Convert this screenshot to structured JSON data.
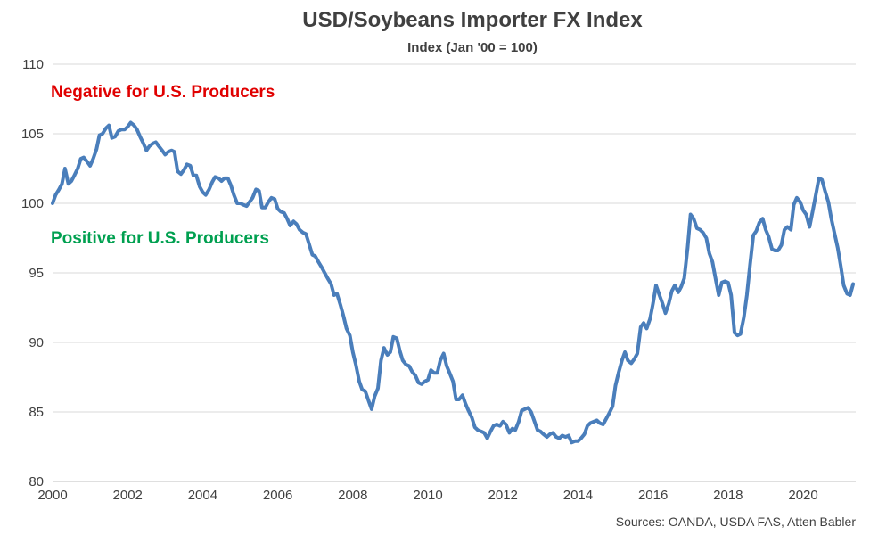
{
  "chart_data": {
    "type": "line",
    "title": "USD/Soybeans Importer FX Index",
    "subtitle": "Index (Jan '00 = 100)",
    "xlabel": "",
    "ylabel": "",
    "xlim": [
      2000,
      2021.4
    ],
    "ylim": [
      80,
      110
    ],
    "x_ticks": [
      2000,
      2002,
      2004,
      2006,
      2008,
      2010,
      2012,
      2014,
      2016,
      2018,
      2020
    ],
    "x_tick_labels": [
      "2000",
      "2002",
      "2004",
      "2006",
      "2008",
      "2010",
      "2012",
      "2014",
      "2016",
      "2018",
      "2020"
    ],
    "y_ticks": [
      80,
      85,
      90,
      95,
      100,
      105,
      110
    ],
    "y_tick_labels": [
      "80",
      "85",
      "90",
      "95",
      "100",
      "105",
      "110"
    ],
    "grid": "horizontal",
    "legend": "none",
    "annotations": [
      {
        "text": "Negative for U.S. Producers",
        "color": "#e00000"
      },
      {
        "text": "Positive for U.S. Producers",
        "color": "#00a050"
      }
    ],
    "source": "Sources: OANDA, USDA FAS, Atten Babler",
    "series": [
      {
        "color": "#4a7ebb",
        "x": [
          2000.0,
          2000.08,
          2000.17,
          2000.25,
          2000.33,
          2000.42,
          2000.5,
          2000.58,
          2000.67,
          2000.75,
          2000.83,
          2000.92,
          2001.0,
          2001.08,
          2001.17,
          2001.25,
          2001.33,
          2001.42,
          2001.5,
          2001.58,
          2001.67,
          2001.75,
          2001.83,
          2001.92,
          2002.0,
          2002.08,
          2002.17,
          2002.25,
          2002.33,
          2002.42,
          2002.5,
          2002.58,
          2002.67,
          2002.75,
          2002.83,
          2002.92,
          2003.0,
          2003.08,
          2003.17,
          2003.25,
          2003.33,
          2003.42,
          2003.5,
          2003.58,
          2003.67,
          2003.75,
          2003.83,
          2003.92,
          2004.0,
          2004.08,
          2004.17,
          2004.25,
          2004.33,
          2004.42,
          2004.5,
          2004.58,
          2004.67,
          2004.75,
          2004.83,
          2004.92,
          2005.0,
          2005.08,
          2005.17,
          2005.25,
          2005.33,
          2005.42,
          2005.5,
          2005.58,
          2005.67,
          2005.75,
          2005.83,
          2005.92,
          2006.0,
          2006.08,
          2006.17,
          2006.25,
          2006.33,
          2006.42,
          2006.5,
          2006.58,
          2006.67,
          2006.75,
          2006.83,
          2006.92,
          2007.0,
          2007.08,
          2007.17,
          2007.25,
          2007.33,
          2007.42,
          2007.5,
          2007.58,
          2007.67,
          2007.75,
          2007.83,
          2007.92,
          2008.0,
          2008.08,
          2008.17,
          2008.25,
          2008.33,
          2008.42,
          2008.5,
          2008.58,
          2008.67,
          2008.75,
          2008.83,
          2008.92,
          2009.0,
          2009.08,
          2009.17,
          2009.25,
          2009.33,
          2009.42,
          2009.5,
          2009.58,
          2009.67,
          2009.75,
          2009.83,
          2009.92,
          2010.0,
          2010.08,
          2010.17,
          2010.25,
          2010.33,
          2010.42,
          2010.5,
          2010.58,
          2010.67,
          2010.75,
          2010.83,
          2010.92,
          2011.0,
          2011.08,
          2011.17,
          2011.25,
          2011.33,
          2011.42,
          2011.5,
          2011.58,
          2011.67,
          2011.75,
          2011.83,
          2011.92,
          2012.0,
          2012.08,
          2012.17,
          2012.25,
          2012.33,
          2012.42,
          2012.5,
          2012.58,
          2012.67,
          2012.75,
          2012.83,
          2012.92,
          2013.0,
          2013.08,
          2013.17,
          2013.25,
          2013.33,
          2013.42,
          2013.5,
          2013.58,
          2013.67,
          2013.75,
          2013.83,
          2013.92,
          2014.0,
          2014.08,
          2014.17,
          2014.25,
          2014.33,
          2014.42,
          2014.5,
          2014.58,
          2014.67,
          2014.75,
          2014.83,
          2014.92,
          2015.0,
          2015.08,
          2015.17,
          2015.25,
          2015.33,
          2015.42,
          2015.5,
          2015.58,
          2015.67,
          2015.75,
          2015.83,
          2015.92,
          2016.0,
          2016.08,
          2016.17,
          2016.25,
          2016.33,
          2016.42,
          2016.5,
          2016.58,
          2016.67,
          2016.75,
          2016.83,
          2016.92,
          2017.0,
          2017.08,
          2017.17,
          2017.25,
          2017.33,
          2017.42,
          2017.5,
          2017.58,
          2017.67,
          2017.75,
          2017.83,
          2017.92,
          2018.0,
          2018.08,
          2018.17,
          2018.25,
          2018.33,
          2018.42,
          2018.5,
          2018.58,
          2018.67,
          2018.75,
          2018.83,
          2018.92,
          2019.0,
          2019.08,
          2019.17,
          2019.25,
          2019.33,
          2019.42,
          2019.5,
          2019.58,
          2019.67,
          2019.75,
          2019.83,
          2019.92,
          2020.0,
          2020.08,
          2020.17,
          2020.25,
          2020.33,
          2020.42,
          2020.5,
          2020.58,
          2020.67,
          2020.75,
          2020.83,
          2020.92,
          2021.0,
          2021.08,
          2021.17,
          2021.25,
          2021.33
        ],
        "values": [
          100.0,
          100.6,
          101.0,
          101.4,
          102.5,
          101.4,
          101.6,
          102.0,
          102.5,
          103.2,
          103.3,
          103.0,
          102.7,
          103.2,
          103.9,
          104.9,
          105.0,
          105.4,
          105.6,
          104.7,
          104.8,
          105.2,
          105.3,
          105.3,
          105.5,
          105.8,
          105.6,
          105.3,
          104.8,
          104.3,
          103.8,
          104.1,
          104.3,
          104.4,
          104.1,
          103.8,
          103.5,
          103.7,
          103.8,
          103.7,
          102.3,
          102.1,
          102.4,
          102.8,
          102.7,
          102.0,
          102.0,
          101.2,
          100.8,
          100.6,
          101.0,
          101.5,
          101.9,
          101.8,
          101.6,
          101.8,
          101.8,
          101.3,
          100.6,
          100.0,
          100.0,
          99.9,
          99.8,
          100.1,
          100.4,
          101.0,
          100.9,
          99.7,
          99.7,
          100.1,
          100.4,
          100.3,
          99.6,
          99.4,
          99.3,
          98.9,
          98.4,
          98.7,
          98.5,
          98.1,
          97.9,
          97.8,
          97.1,
          96.3,
          96.2,
          95.8,
          95.4,
          95.0,
          94.6,
          94.2,
          93.4,
          93.5,
          92.7,
          91.9,
          91.0,
          90.5,
          89.3,
          88.4,
          87.2,
          86.6,
          86.5,
          85.8,
          85.2,
          86.1,
          86.7,
          88.7,
          89.6,
          89.1,
          89.3,
          90.4,
          90.3,
          89.4,
          88.7,
          88.4,
          88.3,
          87.9,
          87.6,
          87.1,
          87.0,
          87.2,
          87.3,
          88.0,
          87.8,
          87.8,
          88.7,
          89.2,
          88.3,
          87.8,
          87.2,
          85.9,
          85.9,
          86.2,
          85.6,
          85.1,
          84.6,
          83.9,
          83.7,
          83.6,
          83.5,
          83.1,
          83.6,
          84.0,
          84.1,
          84.0,
          84.3,
          84.1,
          83.5,
          83.8,
          83.7,
          84.3,
          85.1,
          85.2,
          85.3,
          85.0,
          84.4,
          83.7,
          83.6,
          83.4,
          83.2,
          83.4,
          83.5,
          83.2,
          83.1,
          83.3,
          83.2,
          83.3,
          82.8,
          82.9,
          82.9,
          83.1,
          83.4,
          84.0,
          84.2,
          84.3,
          84.4,
          84.2,
          84.1,
          84.5,
          84.9,
          85.4,
          86.9,
          87.8,
          88.7,
          89.3,
          88.7,
          88.5,
          88.8,
          89.2,
          91.1,
          91.4,
          91.0,
          91.7,
          92.8,
          94.1,
          93.4,
          92.8,
          92.1,
          92.8,
          93.7,
          94.1,
          93.6,
          94.0,
          94.6,
          96.8,
          99.2,
          98.9,
          98.2,
          98.1,
          97.9,
          97.5,
          96.4,
          95.8,
          94.5,
          93.4,
          94.3,
          94.4,
          94.3,
          93.4,
          90.7,
          90.5,
          90.6,
          91.8,
          93.4,
          95.5,
          97.7,
          98.0,
          98.6,
          98.9,
          98.1,
          97.6,
          96.7,
          96.6,
          96.6,
          97.0,
          98.1,
          98.3,
          98.1,
          99.9,
          100.4,
          100.1,
          99.5,
          99.2,
          98.3,
          99.4,
          100.5,
          101.8,
          101.7,
          100.9,
          100.1,
          98.9,
          97.9,
          96.8,
          95.5,
          94.1,
          93.5,
          93.4,
          94.2
        ]
      }
    ]
  }
}
